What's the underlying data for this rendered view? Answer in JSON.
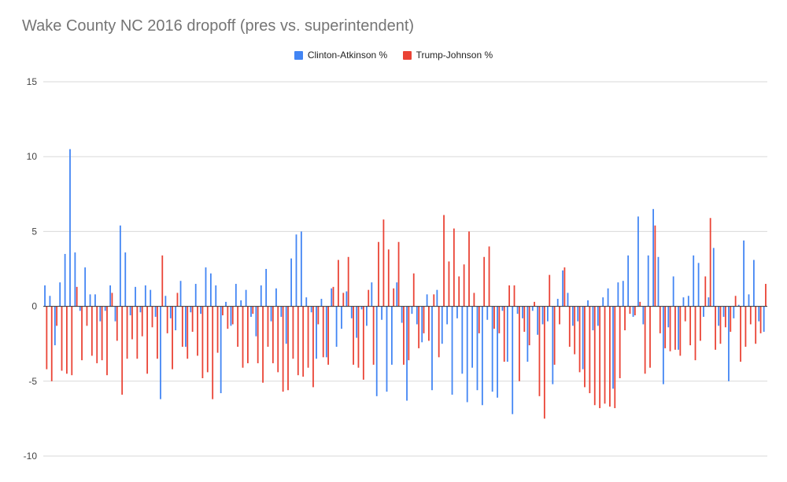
{
  "chart_data": {
    "type": "bar",
    "title": "Wake County NC 2016 dropoff (pres vs. superintendent)",
    "xlabel": "",
    "ylabel": "",
    "ylim": [
      -10,
      15
    ],
    "yticks": [
      15,
      10,
      5,
      0,
      -5,
      -10
    ],
    "grid": true,
    "legend_position": "top",
    "colors": {
      "clinton": "#4285f4",
      "trump": "#ea4335"
    },
    "series": [
      {
        "name": "Clinton-Atkinson %",
        "values": [
          1.4,
          0.7,
          -2.6,
          1.6,
          3.5,
          10.5,
          3.6,
          -0.3,
          2.6,
          0.8,
          0.8,
          -1.0,
          -0.3,
          1.4,
          -1.0,
          5.4,
          3.6,
          -0.6,
          1.3,
          -0.4,
          1.4,
          1.1,
          -0.7,
          -6.2,
          0.7,
          -0.8,
          -1.6,
          1.7,
          -2.7,
          -0.4,
          1.5,
          -0.5,
          2.6,
          2.2,
          1.4,
          -5.8,
          0.3,
          -1.3,
          1.5,
          0.4,
          1.1,
          -0.7,
          -2.0,
          1.4,
          2.5,
          -1.0,
          1.2,
          -0.7,
          -2.5,
          3.2,
          4.8,
          5.0,
          0.6,
          -0.4,
          -3.5,
          0.5,
          -3.4,
          1.2,
          -2.7,
          -1.5,
          1.0,
          -0.8,
          -2.1,
          -0.2,
          -1.3,
          1.6,
          -6.0,
          -0.9,
          -5.7,
          -3.9,
          1.6,
          -1.1,
          -6.3,
          -0.5,
          -1.2,
          -2.4,
          0.8,
          -5.6,
          1.1,
          -2.5,
          -1.2,
          -5.9,
          -0.8,
          -4.5,
          -6.4,
          -4.1,
          -5.6,
          -6.6,
          -0.9,
          -5.7,
          -6.1,
          -0.3,
          -3.7,
          -7.2,
          -0.5,
          -0.8,
          -3.7,
          -0.3,
          -1.9,
          -1.2,
          -1.0,
          -5.2,
          0.5,
          2.4,
          0.9,
          -1.3,
          -1.0,
          -4.2,
          0.4,
          -1.6,
          -1.3,
          0.6,
          1.2,
          -5.5,
          1.6,
          1.7,
          3.4,
          -0.7,
          6.0,
          -1.2,
          3.4,
          6.5,
          3.3,
          -5.2,
          -1.4,
          2.0,
          -2.9,
          0.6,
          0.7,
          3.4,
          2.9,
          -0.7,
          0.6,
          3.9,
          -1.3,
          -0.7,
          -5.0,
          -0.8,
          0.1,
          4.4,
          0.8,
          3.1,
          -1.0,
          -1.7
        ]
      },
      {
        "name": "Trump-Johnson %",
        "values": [
          -4.2,
          -5.0,
          -1.3,
          -4.3,
          -4.5,
          -4.6,
          1.3,
          -3.6,
          -1.3,
          -3.3,
          -3.8,
          -3.6,
          -4.6,
          0.9,
          -2.3,
          -5.9,
          -3.5,
          -2.2,
          -3.5,
          -2.0,
          -4.5,
          -1.4,
          -3.5,
          3.4,
          -1.8,
          -4.2,
          0.9,
          -2.7,
          -3.5,
          -1.7,
          -3.3,
          -4.8,
          -4.4,
          -6.2,
          -3.1,
          -0.6,
          -1.5,
          -1.2,
          -2.7,
          -4.1,
          -3.8,
          -0.5,
          -3.8,
          -5.1,
          -2.7,
          -3.8,
          -4.4,
          -5.7,
          -5.6,
          -3.5,
          -4.6,
          -4.7,
          -4.1,
          -5.4,
          -1.2,
          -3.4,
          -3.9,
          1.3,
          3.1,
          0.9,
          3.3,
          -3.9,
          -4.1,
          -4.9,
          1.1,
          -3.9,
          4.3,
          5.8,
          3.8,
          1.2,
          4.3,
          -3.9,
          -3.6,
          2.2,
          -2.8,
          -1.8,
          -2.3,
          0.8,
          -3.4,
          6.1,
          3.0,
          5.2,
          2.0,
          2.8,
          5.0,
          0.9,
          -1.8,
          3.3,
          4.0,
          -1.5,
          -1.8,
          -3.7,
          1.4,
          1.4,
          -5.0,
          -1.7,
          -2.6,
          0.3,
          -6.0,
          -7.5,
          2.1,
          -3.9,
          -1.2,
          2.6,
          -2.7,
          -3.2,
          -4.4,
          -5.4,
          -5.8,
          -6.6,
          -6.8,
          -6.5,
          -6.7,
          -6.8,
          -4.8,
          -1.6,
          -0.5,
          -0.6,
          0.3,
          -4.5,
          -4.1,
          5.4,
          -1.8,
          -2.8,
          -3.0,
          -2.9,
          -3.3,
          -1.0,
          -2.6,
          -3.6,
          -2.3,
          2.0,
          5.9,
          -2.9,
          -2.5,
          -1.4,
          -1.7,
          0.7,
          -3.7,
          -2.7,
          -1.2,
          -2.5,
          -1.8,
          1.5
        ]
      }
    ]
  }
}
